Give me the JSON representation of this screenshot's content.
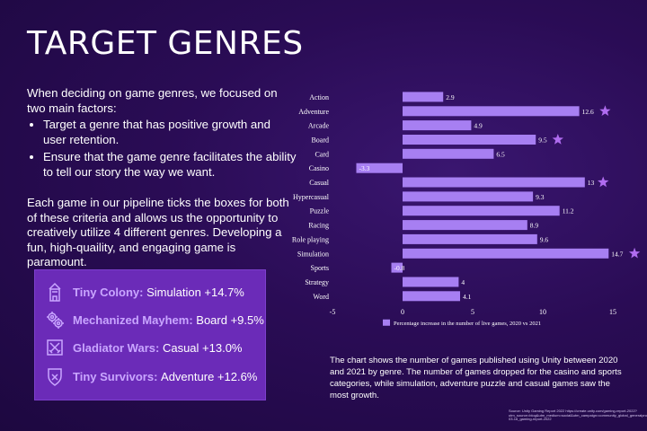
{
  "page": {
    "title": "TARGET GENRES",
    "intro": "When deciding on game genres, we focused on two main factors:",
    "bullets": [
      "Target a genre that has positive growth and user retention.",
      "Ensure that the game genre facilitates the ability to tell our story the way we want."
    ],
    "paragraph": "Each game in our pipeline ticks the boxes for both of these criteria and allows us the opportunity to creatively utilize 4 different genres. Developing a fun, high-quaility, and engaging game is paramount.",
    "caption": "The chart shows the number of games published using Unity between 2020 and 2021 by genre. The number of games dropped for the casino and sports categories, while simulation, adventure puzzle and casual games saw the most growth.",
    "source": "Source: Unity Gaming Report 2022 https://create.unity.com/gaming-report-2022?utm_source=blog&utm_medium=social&utm_campaign=community_global_generalpromo_2022-03-16_gaming-report-2022"
  },
  "games": [
    {
      "name": "Tiny Colony:",
      "detail": "Simulation +14.7%",
      "icon": "tower-icon"
    },
    {
      "name": "Mechanized Mayhem:",
      "detail": "Board +9.5%",
      "icon": "gears-icon"
    },
    {
      "name": "Gladiator Wars:",
      "detail": "Casual +13.0%",
      "icon": "crossed-swords-icon"
    },
    {
      "name": "Tiny Survivors:",
      "detail": "Adventure +12.6%",
      "icon": "shield-icon"
    }
  ],
  "colors": {
    "bar": "#a77ff2",
    "star": "#b06cf0",
    "panel": "#6b2bb8"
  },
  "chart_data": {
    "type": "bar",
    "orientation": "horizontal",
    "categories": [
      "Action",
      "Adventure",
      "Arcade",
      "Board",
      "Card",
      "Casino",
      "Casual",
      "Hypercasual",
      "Puzzle",
      "Racing",
      "Role playing",
      "Simulation",
      "Sports",
      "Strategy",
      "Word"
    ],
    "values": [
      2.9,
      12.6,
      4.9,
      9.5,
      6.5,
      -3.3,
      13,
      9.3,
      11.2,
      8.9,
      9.6,
      14.7,
      -0.8,
      4,
      4.1
    ],
    "value_labels": [
      "2.9",
      "12.6",
      "4.9",
      "9.5",
      "6.5",
      "-3.3",
      "13",
      "9.3",
      "11.2",
      "8.9",
      "9.6",
      "14.7",
      "-0.8",
      "4",
      "4.1"
    ],
    "starred": [
      "Adventure",
      "Board",
      "Casual",
      "Simulation"
    ],
    "xlim": [
      -5,
      15
    ],
    "xticks": [
      "-5",
      "0",
      "5",
      "10",
      "15"
    ],
    "xtick_values": [
      -5,
      0,
      5,
      10,
      15
    ],
    "legend": "Percentage increase in the number of live games, 2020 vs 2021",
    "grid": false
  }
}
